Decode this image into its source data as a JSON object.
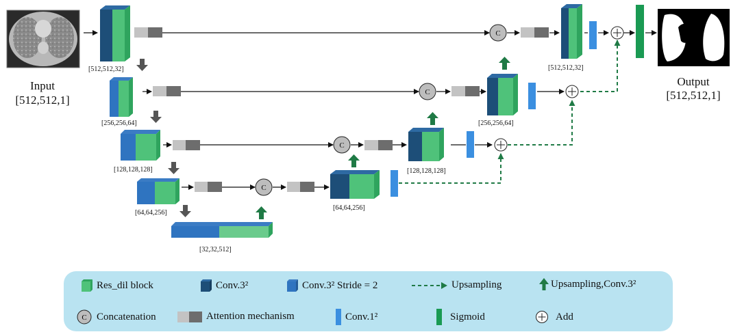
{
  "input": {
    "title": "Input",
    "dims": "[512,512,1]"
  },
  "output": {
    "title": "Output",
    "dims": "[512,512,1]"
  },
  "blocks": {
    "enc1": "[512,512,32]",
    "enc2": "[256,256,64]",
    "enc3": "[128,128,128]",
    "enc4": "[64,64,256]",
    "bottleneck": "[32,32,512]",
    "dec4": "[64,64,256]",
    "dec3": "[128,128,128]",
    "dec2": "[256,256,64]",
    "dec1": "[512,512,32]"
  },
  "concat_symbol": "C",
  "legend": {
    "res_dil": "Res_dil block",
    "conv3": "Conv.3²",
    "conv3_stride": "Conv.3² Stride = 2",
    "upsampling": "Upsampling",
    "upsampling_conv": "Upsampling,Conv.3²",
    "concatenation": "Concatenation",
    "attention": "Attention mechanism",
    "conv1": "Conv.1²",
    "sigmoid": "Sigmoid",
    "add": "Add"
  },
  "colors": {
    "res_dil_green": "#4fc27a",
    "conv3_navy": "#1d4e78",
    "stride_blue": "#2f74c0",
    "conv1_blue": "#3b8fe0",
    "sigmoid_green": "#1a9a53",
    "upsample_arrow": "#1f7a45",
    "down_arrow": "#555555",
    "legend_bg": "#b9e3f1"
  }
}
